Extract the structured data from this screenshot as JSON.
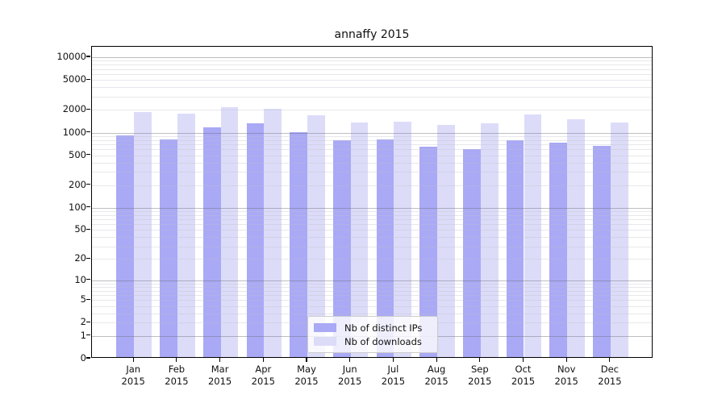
{
  "chart_data": {
    "type": "bar",
    "title": "annaffy 2015",
    "categories": [
      "Jan",
      "Feb",
      "Mar",
      "Apr",
      "May",
      "Jun",
      "Jul",
      "Aug",
      "Sep",
      "Oct",
      "Nov",
      "Dec"
    ],
    "xtick_second_line": "2015",
    "yticks": [
      0,
      1,
      2,
      5,
      10,
      20,
      50,
      100,
      200,
      500,
      1000,
      2000,
      5000,
      10000
    ],
    "yscale": "log10(value + 1), pseudo-log with 0 baseline",
    "ylim": [
      0,
      13800
    ],
    "grid": true,
    "legend_position": "inside-bottom-center",
    "series": [
      {
        "name": "Nb of distinct IPs",
        "color": "#a9a9f6",
        "values": [
          870,
          780,
          1120,
          1260,
          960,
          745,
          775,
          615,
          580,
          760,
          695,
          630
        ]
      },
      {
        "name": "Nb of downloads",
        "color": "#dcdcf9",
        "values": [
          1770,
          1680,
          2050,
          1950,
          1600,
          1280,
          1335,
          1200,
          1260,
          1640,
          1415,
          1305
        ]
      }
    ]
  }
}
